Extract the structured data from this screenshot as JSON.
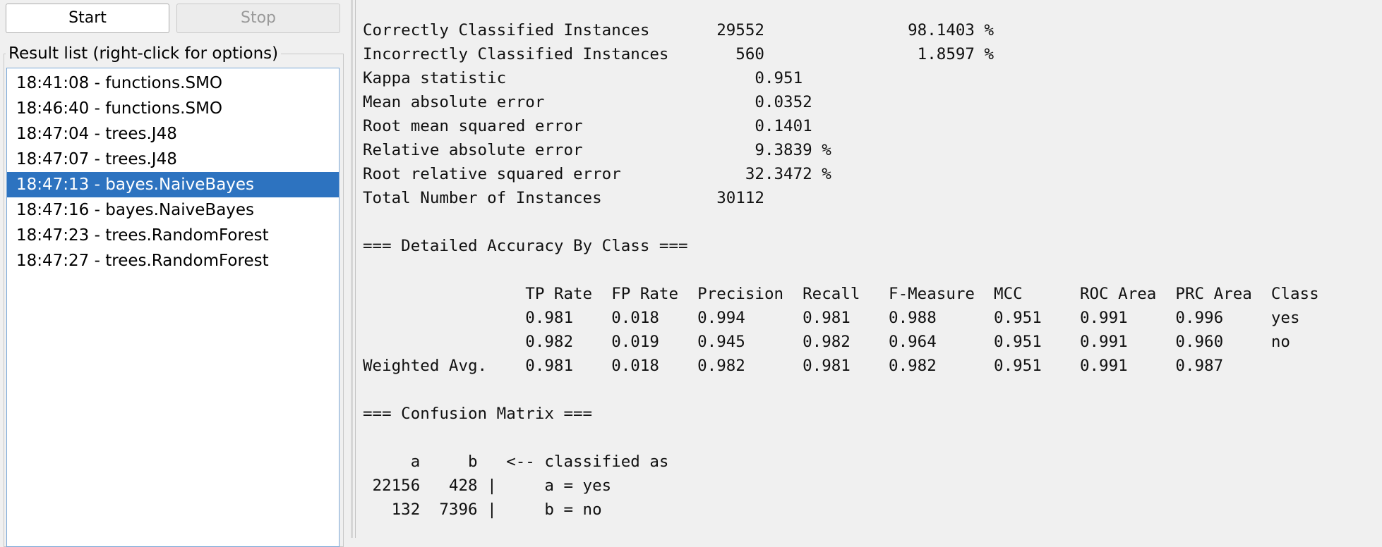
{
  "toolbar": {
    "start_label": "Start",
    "stop_label": "Stop"
  },
  "result_list": {
    "label": "Result list (right-click for options)",
    "items": [
      {
        "text": "18:41:08 - functions.SMO",
        "selected": false
      },
      {
        "text": "18:46:40 - functions.SMO",
        "selected": false
      },
      {
        "text": "18:47:04 - trees.J48",
        "selected": false
      },
      {
        "text": "18:47:07 - trees.J48",
        "selected": false
      },
      {
        "text": "18:47:13 - bayes.NaiveBayes",
        "selected": true
      },
      {
        "text": "18:47:16 - bayes.NaiveBayes",
        "selected": false
      },
      {
        "text": "18:47:23 - trees.RandomForest",
        "selected": false
      },
      {
        "text": "18:47:27 - trees.RandomForest",
        "selected": false
      }
    ],
    "selected_color": "#2d73c0"
  },
  "output": {
    "lines": [
      "Correctly Classified Instances       29552               98.1403 %",
      "Incorrectly Classified Instances       560                1.8597 %",
      "Kappa statistic                          0.951",
      "Mean absolute error                      0.0352",
      "Root mean squared error                  0.1401",
      "Relative absolute error                  9.3839 %",
      "Root relative squared error             32.3472 %",
      "Total Number of Instances            30112",
      "",
      "=== Detailed Accuracy By Class ===",
      "",
      "                 TP Rate  FP Rate  Precision  Recall   F-Measure  MCC      ROC Area  PRC Area  Class",
      "                 0.981    0.018    0.994      0.981    0.988      0.951    0.991     0.996     yes",
      "                 0.982    0.019    0.945      0.982    0.964      0.951    0.991     0.960     no",
      "Weighted Avg.    0.981    0.018    0.982      0.981    0.982      0.951    0.991     0.987",
      "",
      "=== Confusion Matrix ===",
      "",
      "     a     b   <-- classified as",
      " 22156   428 |     a = yes",
      "   132  7396 |     b = no"
    ]
  }
}
